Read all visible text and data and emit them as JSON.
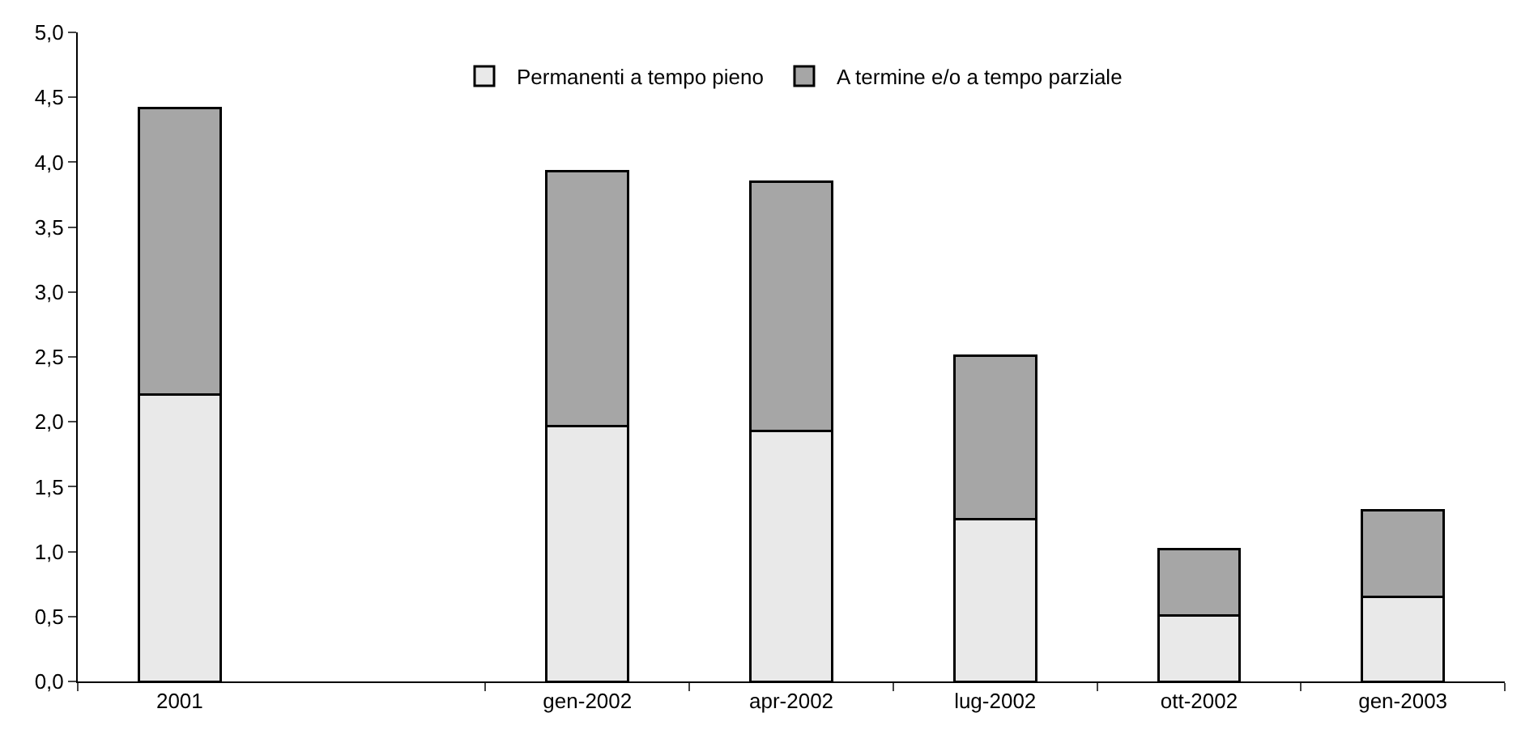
{
  "chart_data": {
    "type": "bar",
    "stacked": true,
    "categories": [
      "2001",
      null,
      "gen-2002",
      "apr-2002",
      "lug-2002",
      "ott-2002",
      "gen-2003"
    ],
    "series": [
      {
        "name": "Permanenti a tempo pieno",
        "color": "#e9e9e9",
        "values": [
          2.21,
          null,
          1.97,
          1.93,
          1.25,
          0.51,
          0.65
        ]
      },
      {
        "name": "A termine e/o a tempo parziale",
        "color": "#a6a6a6",
        "values": [
          2.21,
          null,
          1.96,
          1.92,
          1.26,
          0.51,
          0.67
        ]
      }
    ],
    "ylim": [
      0,
      5
    ],
    "yticks": [
      {
        "value": 0,
        "label": "0,0"
      },
      {
        "value": 0.5,
        "label": "0,5"
      },
      {
        "value": 1,
        "label": "1,0"
      },
      {
        "value": 1.5,
        "label": "1,5"
      },
      {
        "value": 2,
        "label": "2,0"
      },
      {
        "value": 2.5,
        "label": "2,5"
      },
      {
        "value": 3,
        "label": "3,0"
      },
      {
        "value": 3.5,
        "label": "3,5"
      },
      {
        "value": 4,
        "label": "4,0"
      },
      {
        "value": 4.5,
        "label": "4,5"
      },
      {
        "value": 5,
        "label": "5,0"
      }
    ],
    "grid": false,
    "legend": "top"
  }
}
